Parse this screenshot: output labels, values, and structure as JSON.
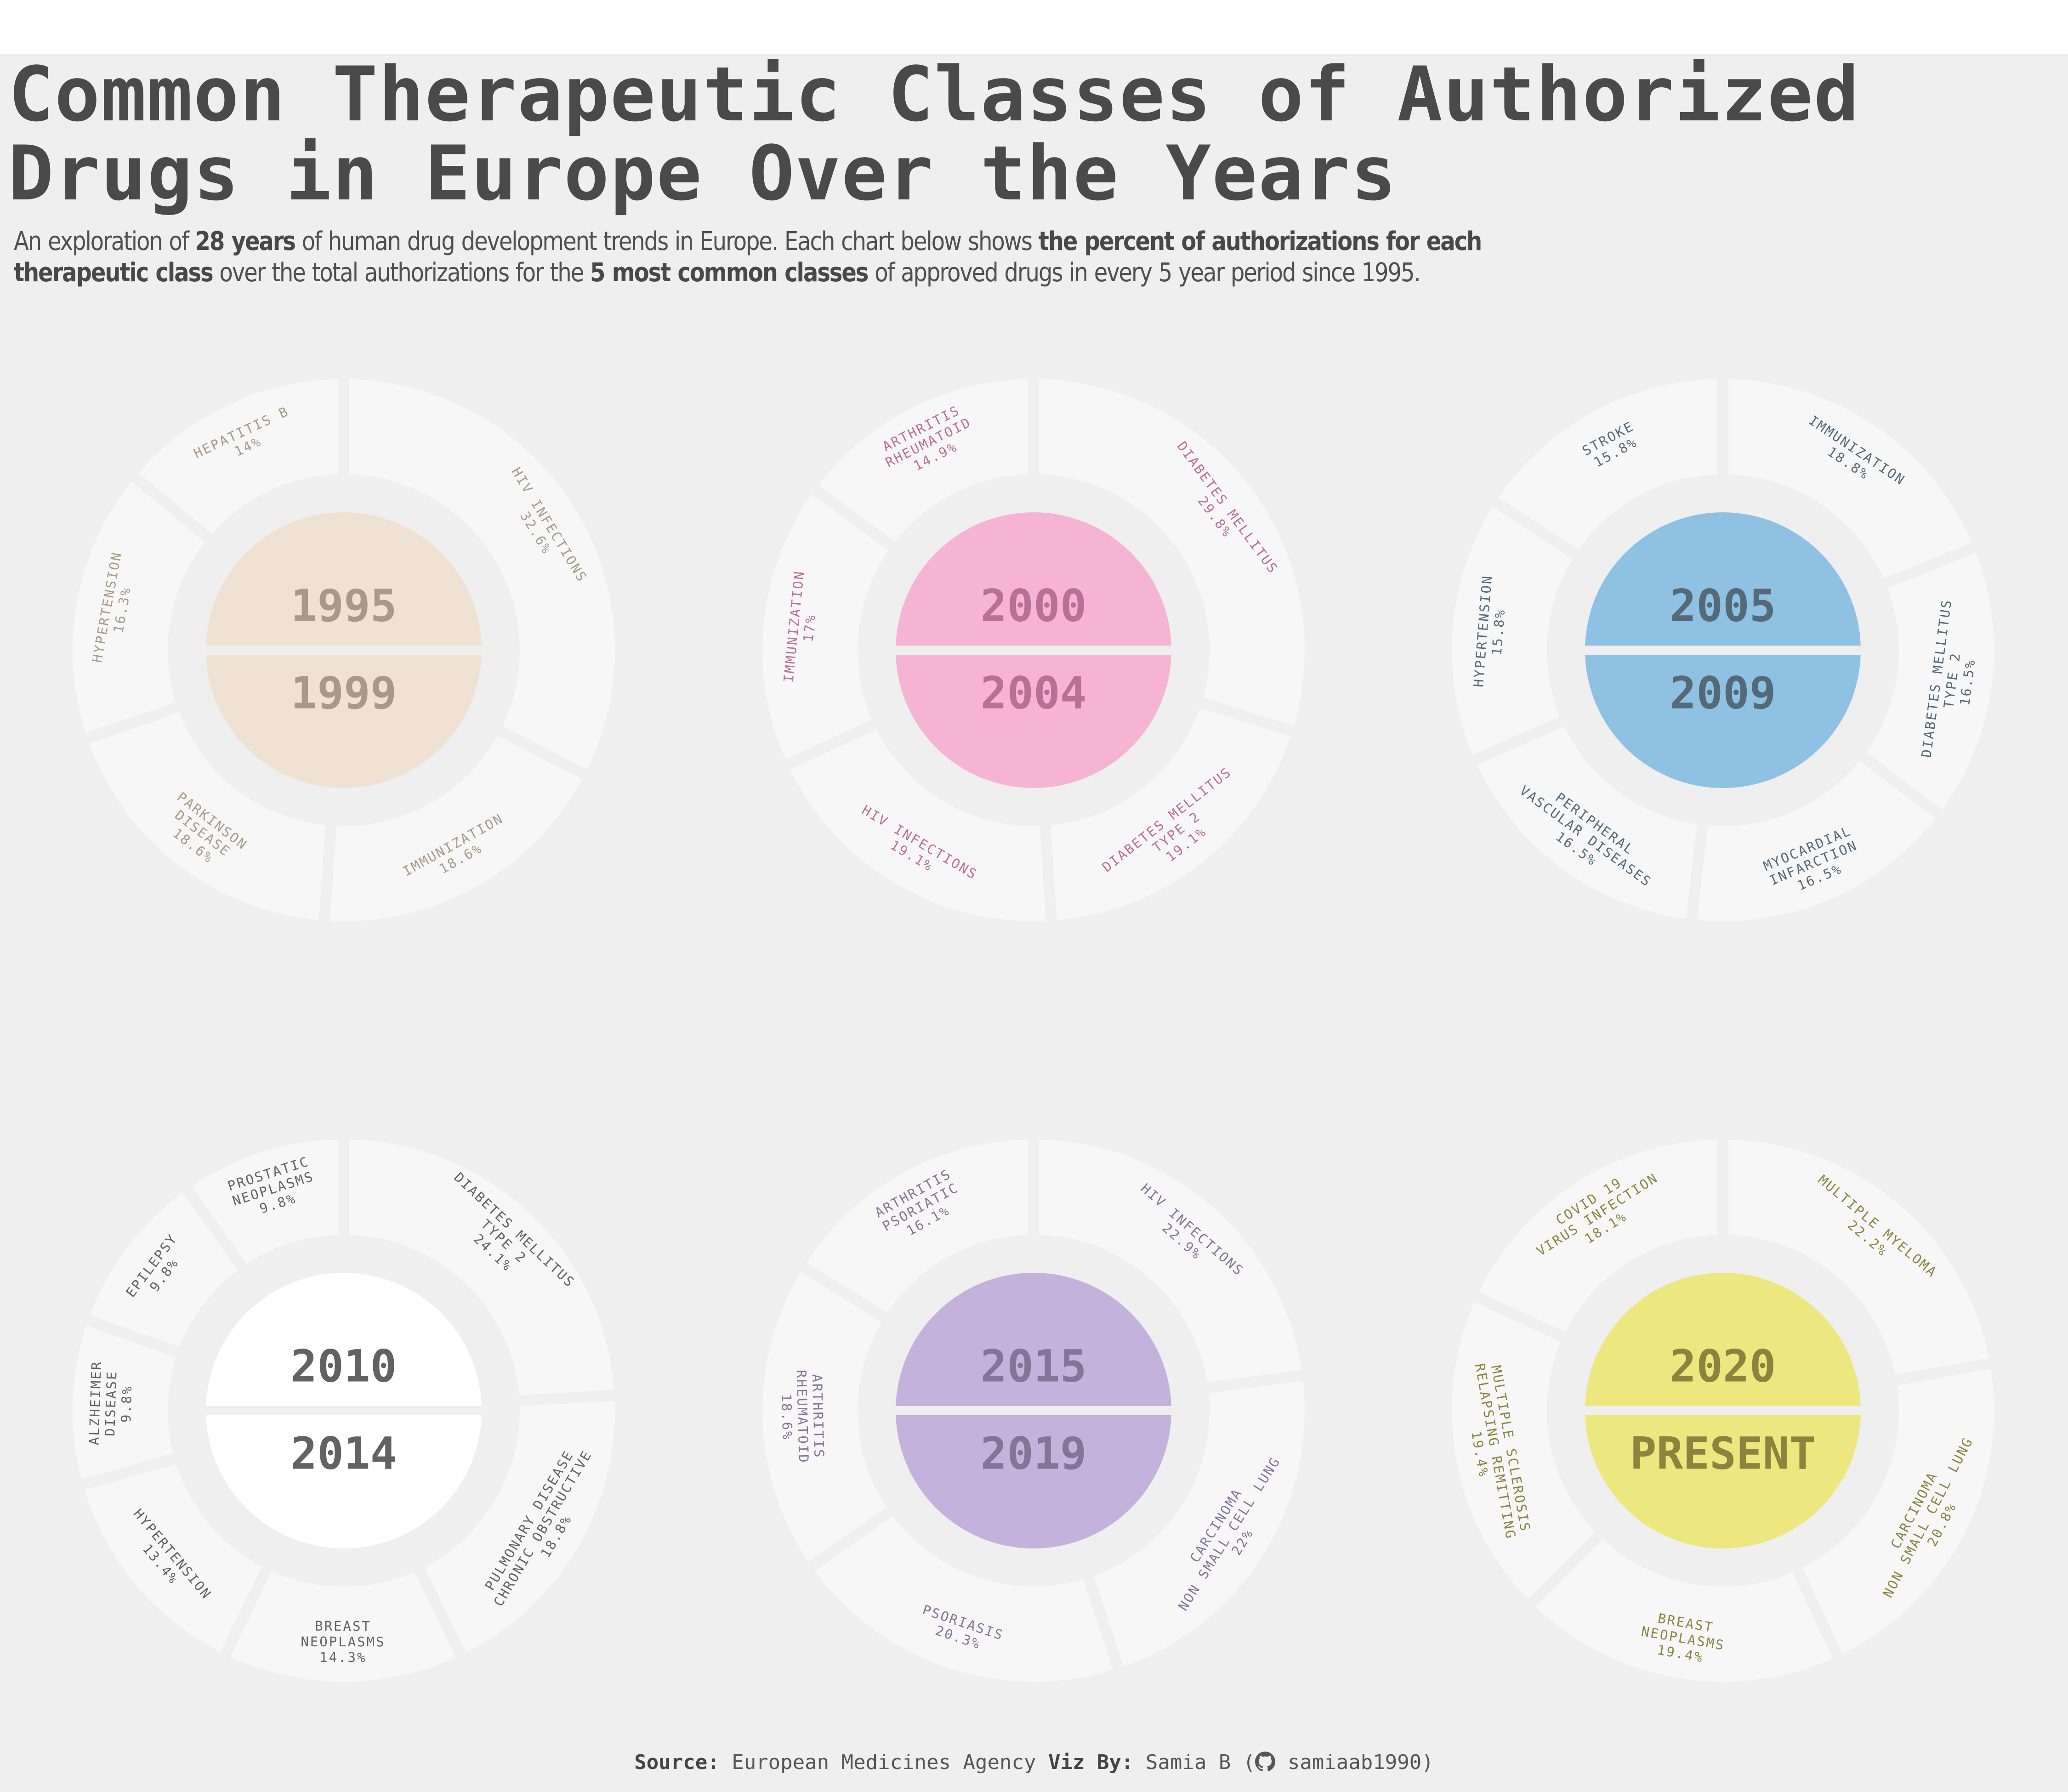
{
  "title": {
    "line1": "Common Therapeutic Classes of Authorized",
    "line2": "Drugs in Europe Over the Years"
  },
  "subtitle": {
    "l1_a": "An exploration of ",
    "l1_b": "28 years",
    "l1_c": " of human drug development trends in Europe. Each chart below shows ",
    "l1_d": "the percent of authorizations for each",
    "l2_a": "therapeutic class",
    "l2_b": " over the total authorizations for the ",
    "l2_c": "5 most common classes",
    "l2_d": " of approved drugs in every 5 year period since 1995."
  },
  "footer": {
    "source_label": "Source:",
    "source": "European Medicines Agency",
    "viz_label": "Viz By:",
    "author": "Samia B (",
    "github_icon": "github-icon",
    "handle": "samiaab1990)"
  },
  "chart_data": [
    {
      "type": "pie",
      "period_start": "1995",
      "period_end": "1999",
      "color": "#efe2d2",
      "text_color": "#a89a87",
      "slices": [
        {
          "label": [
            "HIV INFECTIONS",
            "32.6%"
          ],
          "value": 32.6
        },
        {
          "label": [
            "IMMUNIZATION",
            "18.6%"
          ],
          "value": 18.6
        },
        {
          "label": [
            "PARKINSON",
            "DISEASE",
            "18.6%"
          ],
          "value": 18.6
        },
        {
          "label": [
            "HYPERTENSION",
            "16.3%"
          ],
          "value": 16.3
        },
        {
          "label": [
            "HEPATITIS B",
            "14%"
          ],
          "value": 14
        }
      ]
    },
    {
      "type": "pie",
      "period_start": "2000",
      "period_end": "2004",
      "color": "#f5b4d3",
      "text_color": "#b97096",
      "slices": [
        {
          "label": [
            "DIABETES MELLITUS",
            "29.8%"
          ],
          "value": 29.8
        },
        {
          "label": [
            "DIABETES MELLITUS",
            "TYPE 2",
            "19.1%"
          ],
          "value": 19.1
        },
        {
          "label": [
            "HIV INFECTIONS",
            "19.1%"
          ],
          "value": 19.1
        },
        {
          "label": [
            "IMMUNIZATION",
            "17%"
          ],
          "value": 17
        },
        {
          "label": [
            "ARTHRITIS",
            "RHEUMATOID",
            "14.9%"
          ],
          "value": 14.9
        }
      ]
    },
    {
      "type": "pie",
      "period_start": "2005",
      "period_end": "2009",
      "color": "#8fc1e3",
      "text_color": "#546a79",
      "slices": [
        {
          "label": [
            "IMMUNIZATION",
            "18.8%"
          ],
          "value": 18.8
        },
        {
          "label": [
            "DIABETES MELLITUS",
            "TYPE 2",
            "16.5%"
          ],
          "value": 16.5
        },
        {
          "label": [
            "MYOCARDIAL",
            "INFARCTION",
            "16.5%"
          ],
          "value": 16.5
        },
        {
          "label": [
            "PERIPHERAL",
            "VASCULAR DISEASES",
            "16.5%"
          ],
          "value": 16.5
        },
        {
          "label": [
            "HYPERTENSION",
            "15.8%"
          ],
          "value": 15.8
        },
        {
          "label": [
            "STROKE",
            "15.8%"
          ],
          "value": 15.8
        }
      ]
    },
    {
      "type": "pie",
      "period_start": "2010",
      "period_end": "2014",
      "color": "#ffffff",
      "text_color": "#626262",
      "slices": [
        {
          "label": [
            "DIABETES MELLITUS",
            "TYPE 2",
            "24.1%"
          ],
          "value": 24.1
        },
        {
          "label": [
            "PULMONARY DISEASE",
            "CHRONIC OBSTRUCTIVE",
            "18.8%"
          ],
          "value": 18.8
        },
        {
          "label": [
            "BREAST",
            "NEOPLASMS",
            "14.3%"
          ],
          "value": 14.3
        },
        {
          "label": [
            "HYPERTENSION",
            "13.4%"
          ],
          "value": 13.4
        },
        {
          "label": [
            "ALZHEIMER",
            "DISEASE",
            "9.8%"
          ],
          "value": 9.8
        },
        {
          "label": [
            "EPILEPSY",
            "9.8%"
          ],
          "value": 9.8
        },
        {
          "label": [
            "PROSTATIC",
            "NEOPLASMS",
            "9.8%"
          ],
          "value": 9.8
        }
      ]
    },
    {
      "type": "pie",
      "period_start": "2015",
      "period_end": "2019",
      "color": "#c4b1dc",
      "text_color": "#837597",
      "slices": [
        {
          "label": [
            "HIV INFECTIONS",
            "22.9%"
          ],
          "value": 22.9
        },
        {
          "label": [
            "CARCINOMA",
            "NON SMALL CELL LUNG",
            "22%"
          ],
          "value": 22
        },
        {
          "label": [
            "PSORIASIS",
            "20.3%"
          ],
          "value": 20.3
        },
        {
          "label": [
            "ARTHRITIS",
            "RHEUMATOID",
            "18.6%"
          ],
          "value": 18.6
        },
        {
          "label": [
            "ARTHRITIS",
            "PSORIATIC",
            "16.1%"
          ],
          "value": 16.1
        }
      ]
    },
    {
      "type": "pie",
      "period_start": "2020",
      "period_end": "PRESENT",
      "color": "#ece77e",
      "text_color": "#8a843f",
      "slices": [
        {
          "label": [
            "MULTIPLE MYELOMA",
            "22.2%"
          ],
          "value": 22.2
        },
        {
          "label": [
            "CARCINOMA",
            "NON SMALL CELL LUNG",
            "20.8%"
          ],
          "value": 20.8
        },
        {
          "label": [
            "BREAST",
            "NEOPLASMS",
            "19.4%"
          ],
          "value": 19.4
        },
        {
          "label": [
            "MULTIPLE SCLEROSIS",
            "RELAPSING REMITTING",
            "19.4%"
          ],
          "value": 19.4
        },
        {
          "label": [
            "COVID 19",
            "VIRUS INFECTION",
            "18.1%"
          ],
          "value": 18.1
        }
      ]
    }
  ]
}
